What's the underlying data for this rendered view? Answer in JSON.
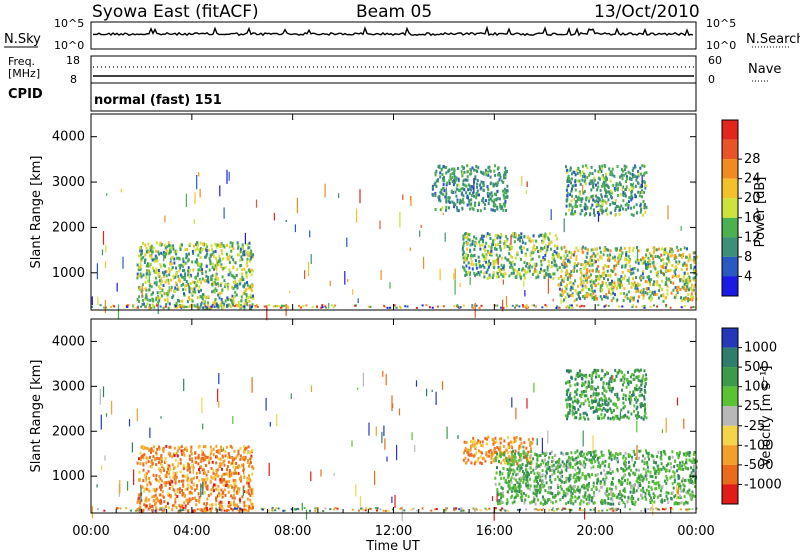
{
  "header": {
    "station": "Syowa East (fitACF)",
    "beam": "Beam 05",
    "date": "13/Oct/2010"
  },
  "noise_panel": {
    "left_label": "N.Sky",
    "right_label": "N.Search",
    "left_ticks": [
      "10^5",
      "10^0"
    ],
    "right_ticks": [
      "10^5",
      "10^0"
    ]
  },
  "freq_panel": {
    "left_label_line1": "Freq.",
    "left_label_line2": "[MHz]",
    "left_ticks": [
      "18",
      "8"
    ],
    "right_label": "Nave",
    "right_ticks": [
      "60",
      "0"
    ]
  },
  "cpid_panel": {
    "label": "CPID",
    "mode": "normal (fast) 151"
  },
  "chart_data": [
    {
      "type": "heatmap",
      "name": "power",
      "ylabel": "Slant Range [km]",
      "ylim": [
        180,
        4500
      ],
      "y_ticks": [
        "1000",
        "2000",
        "3000",
        "4000"
      ],
      "colorbar_label": "Power [dB]",
      "colorbar_ticks": [
        "4",
        "8",
        "12",
        "16",
        "20",
        "24",
        "28"
      ],
      "colorscale": [
        "#1a1ae6",
        "#2a59c2",
        "#3d8f7a",
        "#4caf50",
        "#cde23a",
        "#f3c22b",
        "#f08b1f",
        "#e9532a",
        "#e2261d"
      ],
      "regions": [
        {
          "t0": 1.8,
          "t1": 6.4,
          "r0": 250,
          "r1": 1700,
          "level": 0.55
        },
        {
          "t0": 14.7,
          "t1": 18.5,
          "r0": 900,
          "r1": 1900,
          "level": 0.5
        },
        {
          "t0": 18.5,
          "t1": 24.0,
          "r0": 400,
          "r1": 1600,
          "level": 0.7
        },
        {
          "t0": 18.8,
          "t1": 22.0,
          "r0": 2300,
          "r1": 3400,
          "level": 0.35
        },
        {
          "t0": 13.5,
          "t1": 16.5,
          "r0": 2400,
          "r1": 3400,
          "level": 0.3
        }
      ]
    },
    {
      "type": "heatmap",
      "name": "velocity",
      "ylabel": "Slant Range [km]",
      "ylim": [
        180,
        4500
      ],
      "y_ticks": [
        "1000",
        "2000",
        "3000",
        "4000"
      ],
      "x_ticks": [
        "00:00",
        "04:00",
        "08:00",
        "12:00",
        "16:00",
        "20:00",
        "00:00"
      ],
      "xlabel": "Time UT",
      "xlim": [
        0,
        24
      ],
      "colorbar_label": "Velocity [m s⁻¹]",
      "colorbar_ticks": [
        "1000",
        "500",
        "100",
        "25",
        "-25",
        "-100",
        "-500",
        "-1000"
      ],
      "colorscale": [
        "#2438b8",
        "#2f7d6a",
        "#3c9a4a",
        "#5bc236",
        "#b8b8b8",
        "#f4d44a",
        "#f2a02a",
        "#ec6a1e",
        "#e21a1a"
      ],
      "regions": [
        {
          "t0": 1.8,
          "t1": 6.4,
          "r0": 250,
          "r1": 1700,
          "level": -0.6
        },
        {
          "t0": 14.7,
          "t1": 17.5,
          "r0": 1300,
          "r1": 1900,
          "level": -0.55
        },
        {
          "t0": 16.0,
          "t1": 24.0,
          "r0": 400,
          "r1": 1600,
          "level": 0.35
        },
        {
          "t0": 18.8,
          "t1": 22.0,
          "r0": 2300,
          "r1": 3400,
          "level": 0.5
        }
      ]
    }
  ]
}
